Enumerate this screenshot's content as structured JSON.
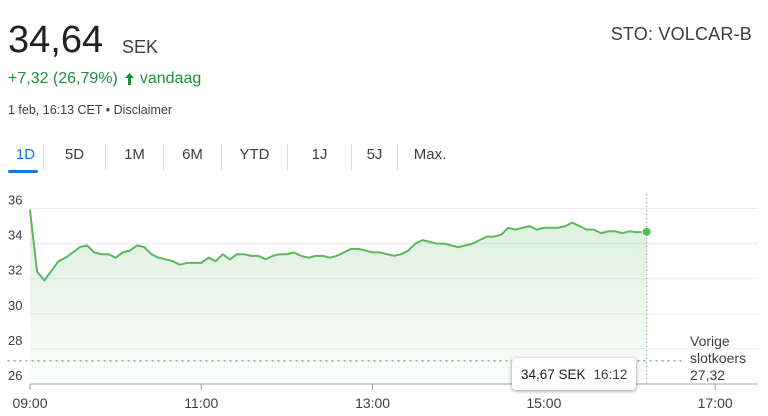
{
  "header": {
    "price": "34,64",
    "currency": "SEK",
    "ticker": "STO: VOLCAR-B",
    "change": "+7,32 (26,79%)",
    "change_suffix": "vandaag",
    "timestamp": "1 feb, 16:13 CET",
    "separator": "•",
    "disclaimer": "Disclaimer"
  },
  "tabs": [
    {
      "label": "1D",
      "active": true
    },
    {
      "label": "5D"
    },
    {
      "label": "1M"
    },
    {
      "label": "6M"
    },
    {
      "label": "YTD"
    },
    {
      "label": "1J"
    },
    {
      "label": "5J"
    },
    {
      "label": "Max."
    }
  ],
  "colors": {
    "accent": "#1a73e8",
    "positive": "#1e8e3e",
    "line": "#5cb85c"
  },
  "tooltip": {
    "price": "34,67 SEK",
    "time": "16:12"
  },
  "previous_close": {
    "label_line1": "Vorige",
    "label_line2": "slotkoers",
    "value": "27,32"
  },
  "chart_data": {
    "type": "area",
    "x_ticks": [
      "09:00",
      "11:00",
      "13:00",
      "15:00",
      "17:00"
    ],
    "y_ticks": [
      "26",
      "28",
      "30",
      "32",
      "34",
      "36"
    ],
    "ylim": [
      26,
      36.6
    ],
    "xlim": [
      "09:00",
      "17:30"
    ],
    "reference_line": 27.32,
    "series": [
      {
        "x": [
          "09:00",
          "09:05",
          "09:10",
          "09:20",
          "09:25",
          "09:30",
          "09:35",
          "09:40",
          "09:45",
          "09:50",
          "09:55",
          "10:00",
          "10:05",
          "10:10",
          "10:15",
          "10:20",
          "10:25",
          "10:30",
          "10:35",
          "10:40",
          "10:45",
          "10:50",
          "10:55",
          "11:00",
          "11:05",
          "11:10",
          "11:15",
          "11:20",
          "11:25",
          "11:30",
          "11:35",
          "11:40",
          "11:45",
          "11:50",
          "11:55",
          "12:00",
          "12:05",
          "12:10",
          "12:15",
          "12:20",
          "12:25",
          "12:30",
          "12:35",
          "12:40",
          "12:45",
          "12:50",
          "12:55",
          "13:00",
          "13:05",
          "13:10",
          "13:15",
          "13:20",
          "13:25",
          "13:30",
          "13:35",
          "13:40",
          "13:45",
          "13:50",
          "13:55",
          "14:00",
          "14:05",
          "14:10",
          "14:15",
          "14:20",
          "14:25",
          "14:30",
          "14:35",
          "14:40",
          "14:45",
          "14:50",
          "14:55",
          "15:00",
          "15:05",
          "15:10",
          "15:15",
          "15:20",
          "15:25",
          "15:30",
          "15:35",
          "15:40",
          "15:45",
          "15:50",
          "15:55",
          "16:00",
          "16:05",
          "16:12"
        ],
        "y": [
          35.9,
          32.4,
          31.9,
          33.0,
          33.2,
          33.5,
          33.8,
          33.9,
          33.5,
          33.4,
          33.4,
          33.2,
          33.5,
          33.6,
          33.9,
          33.8,
          33.4,
          33.2,
          33.1,
          33.0,
          32.8,
          32.9,
          32.9,
          32.9,
          33.2,
          33.0,
          33.4,
          33.1,
          33.4,
          33.4,
          33.3,
          33.3,
          33.1,
          33.3,
          33.4,
          33.4,
          33.5,
          33.3,
          33.2,
          33.3,
          33.3,
          33.2,
          33.3,
          33.5,
          33.7,
          33.7,
          33.6,
          33.5,
          33.5,
          33.4,
          33.3,
          33.4,
          33.6,
          34.0,
          34.2,
          34.1,
          34.0,
          34.0,
          33.9,
          33.8,
          33.9,
          34.0,
          34.2,
          34.4,
          34.4,
          34.5,
          34.9,
          34.8,
          34.9,
          35.0,
          34.8,
          34.9,
          34.9,
          34.9,
          35.0,
          35.2,
          35.0,
          34.8,
          34.8,
          34.6,
          34.7,
          34.7,
          34.6,
          34.7,
          34.65,
          34.67
        ]
      }
    ]
  }
}
